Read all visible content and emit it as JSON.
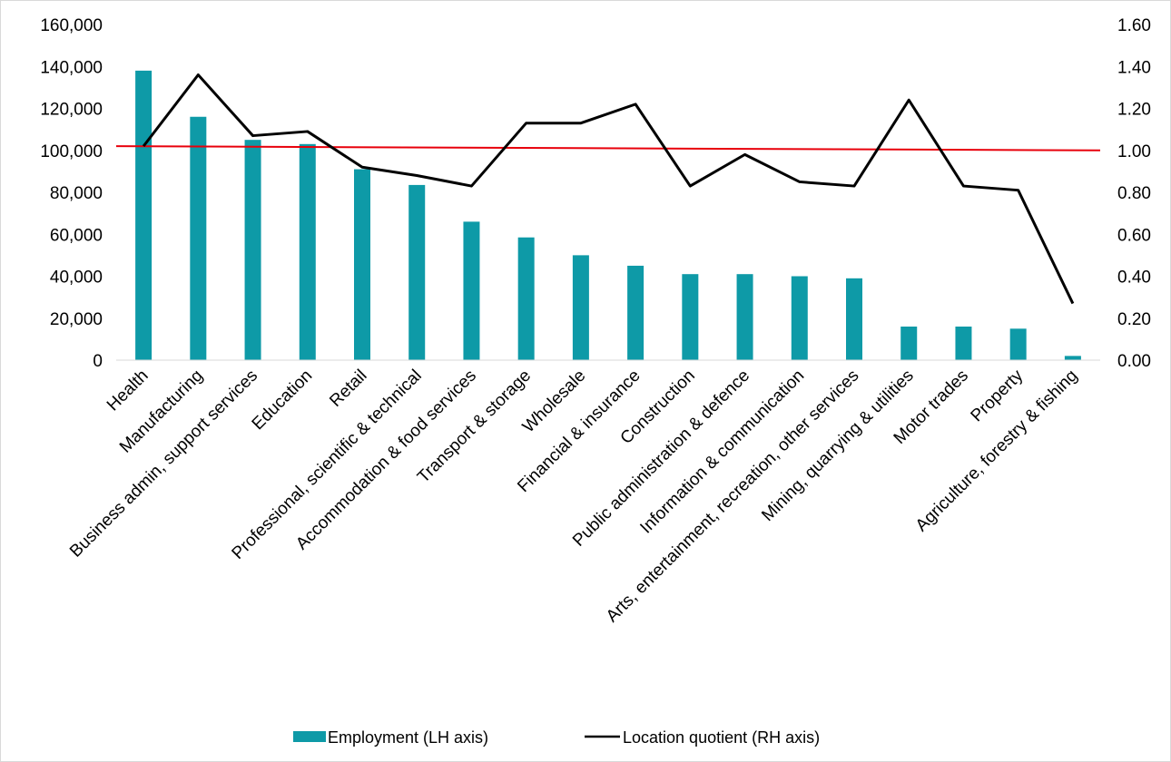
{
  "chart_data": {
    "type": "bar",
    "title": "",
    "categories": [
      "Health",
      "Manufacturing",
      "Business admin, support services",
      "Education",
      "Retail",
      "Professional, scientific & technical",
      "Accommodation & food services",
      "Transport & storage",
      "Wholesale",
      "Financial & insurance",
      "Construction",
      "Public administration & defence",
      "Information & communication",
      "Arts, entertainment, recreation, other services",
      "Mining, quarrying & utilities",
      "Motor trades",
      "Property",
      "Agriculture, forestry & fishing"
    ],
    "series": [
      {
        "name": "Employment (LH axis)",
        "chart_type": "bar",
        "axis": "left",
        "color": "#0e9aa7",
        "values": [
          138000,
          116000,
          105000,
          103000,
          91000,
          83500,
          66000,
          58500,
          50000,
          45000,
          41000,
          41000,
          40000,
          39000,
          16000,
          16000,
          15000,
          2000
        ]
      },
      {
        "name": "Location quotient (RH axis)",
        "chart_type": "line",
        "axis": "right",
        "color": "#000000",
        "values": [
          1.02,
          1.36,
          1.07,
          1.09,
          0.92,
          0.88,
          0.83,
          1.13,
          1.13,
          1.22,
          0.83,
          0.98,
          0.85,
          0.83,
          1.24,
          0.83,
          0.81,
          0.27
        ]
      }
    ],
    "reference_line": {
      "axis": "right",
      "start": 1.02,
      "end": 1.0,
      "color": "#e8000b"
    },
    "y_left": {
      "ylim": [
        0,
        160000
      ],
      "ticks": [
        0,
        20000,
        40000,
        60000,
        80000,
        100000,
        120000,
        140000,
        160000
      ],
      "tick_labels": [
        "0",
        "20,000",
        "40,000",
        "60,000",
        "80,000",
        "100,000",
        "120,000",
        "140,000",
        "160,000"
      ]
    },
    "y_right": {
      "ylim": [
        0,
        1.6
      ],
      "ticks": [
        0,
        0.2,
        0.4,
        0.6,
        0.8,
        1.0,
        1.2,
        1.4,
        1.6
      ],
      "tick_labels": [
        "0.00",
        "0.20",
        "0.40",
        "0.60",
        "0.80",
        "1.00",
        "1.20",
        "1.40",
        "1.60"
      ]
    },
    "grid": false,
    "legend_position": "bottom"
  }
}
